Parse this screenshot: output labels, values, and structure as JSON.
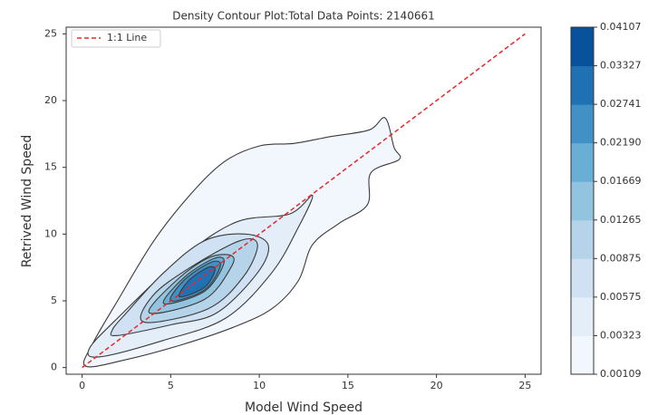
{
  "chart_data": {
    "type": "contour",
    "title": "Density Contour Plot:Total Data Points: 2140661",
    "xlabel": "Model  Wind Speed",
    "ylabel": "Retrived Wind Speed",
    "xlim": [
      -0.9,
      25.9
    ],
    "ylim": [
      -0.5,
      25.5
    ],
    "xticks": [
      0,
      5,
      10,
      15,
      20,
      25
    ],
    "yticks": [
      0,
      5,
      10,
      15,
      20,
      25
    ],
    "grid": false,
    "legend": "upper left",
    "contours": [
      {
        "level": 0.00109,
        "color": "#f2f7fd",
        "x": [
          0.2,
          2.5,
          5.6,
          8.5,
          10.7,
          12.2,
          13.0,
          14.5,
          16.1,
          16.3,
          17.9,
          17.6,
          17.1,
          16.2,
          14.0,
          12.0,
          10.0,
          8.0,
          6.0,
          4.0,
          2.0,
          0.6
        ],
        "y": [
          0.1,
          0.6,
          1.7,
          3.0,
          4.4,
          6.5,
          9.2,
          10.8,
          12.2,
          14.6,
          15.6,
          16.5,
          18.7,
          17.8,
          17.3,
          16.8,
          16.6,
          15.4,
          12.8,
          9.4,
          5.0,
          1.8
        ]
      },
      {
        "level": 0.00323,
        "color": "#e3eef9",
        "x": [
          1.0,
          4.5,
          8.1,
          10.7,
          12.2,
          13.0,
          11.7,
          8.7,
          5.6,
          2.0,
          0.4
        ],
        "y": [
          0.8,
          2.0,
          3.7,
          7.1,
          10.5,
          12.9,
          11.5,
          10.9,
          8.2,
          3.7,
          1.4
        ]
      },
      {
        "level": 0.00575,
        "color": "#cfe1f2",
        "x": [
          2.0,
          5.0,
          7.6,
          9.9,
          10.5,
          9.2,
          6.9,
          4.6,
          2.5,
          1.7
        ],
        "y": [
          2.4,
          3.2,
          4.1,
          7.1,
          9.2,
          10.0,
          9.5,
          7.1,
          4.1,
          2.8
        ]
      },
      {
        "level": 0.00875,
        "color": "#b5d4e9",
        "x": [
          3.5,
          7.1,
          9.1,
          9.9,
          8.9,
          6.1,
          4.0
        ],
        "y": [
          3.4,
          4.4,
          6.8,
          9.2,
          9.5,
          7.5,
          5.4
        ]
      },
      {
        "level": 0.01265,
        "color": "#93c4df",
        "x": [
          3.8,
          6.9,
          8.4,
          8.4,
          7.1,
          5.3
        ],
        "y": [
          4.1,
          5.1,
          7.5,
          8.4,
          8.2,
          6.5
        ]
      },
      {
        "level": 0.01669,
        "color": "#6aaed6",
        "x": [
          4.6,
          6.9,
          8.0,
          7.5,
          5.8
        ],
        "y": [
          4.8,
          5.7,
          7.8,
          8.2,
          6.8
        ]
      },
      {
        "level": 0.0219,
        "color": "#4191c6",
        "x": [
          5.0,
          6.9,
          7.8,
          7.3,
          5.8
        ],
        "y": [
          5.0,
          5.8,
          7.6,
          7.9,
          6.6
        ]
      },
      {
        "level": 0.02741,
        "color": "#2070b4",
        "x": [
          5.5,
          6.9,
          7.5,
          7.1,
          6.0
        ],
        "y": [
          5.3,
          6.0,
          7.3,
          7.5,
          6.5
        ]
      }
    ],
    "series": [
      {
        "name": "1:1 Line",
        "color": "#e8282b",
        "x": [
          0,
          25
        ],
        "values": [
          0,
          25
        ]
      }
    ],
    "colorbar": {
      "ticks": [
        0.00109,
        0.00323,
        0.00575,
        0.00875,
        0.01265,
        0.01669,
        {
          "value": 0.0219,
          "label": "0.02190"
        },
        0.02741,
        0.03327,
        0.04107
      ],
      "colors": [
        "#f2f7fd",
        "#e3eef9",
        "#cfe1f2",
        "#b5d4e9",
        "#93c4df",
        "#6aaed6",
        "#4191c6",
        "#2070b4",
        "#08519c"
      ]
    }
  }
}
